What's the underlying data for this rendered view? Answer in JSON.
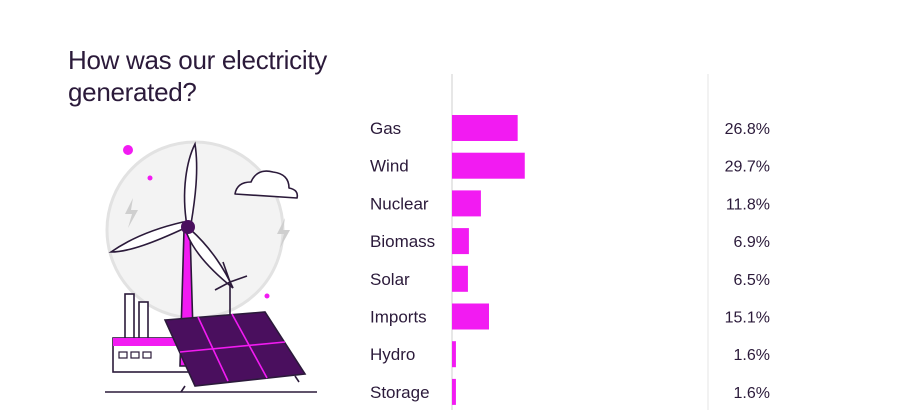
{
  "title": "How was our electricity generated?",
  "colors": {
    "bar": "#f21bf2",
    "ink": "#2b1a3a",
    "purple": "#4a0f5e",
    "axis": "#cfcfcf"
  },
  "chart_data": {
    "type": "bar",
    "orientation": "horizontal",
    "title": "How was our electricity generated?",
    "categories": [
      "Gas",
      "Wind",
      "Nuclear",
      "Biomass",
      "Solar",
      "Imports",
      "Hydro",
      "Storage"
    ],
    "values": [
      26.8,
      29.7,
      11.8,
      6.9,
      6.5,
      15.1,
      1.6,
      1.6
    ],
    "value_labels": [
      "26.8%",
      "29.7%",
      "11.8%",
      "6.9%",
      "6.5%",
      "15.1%",
      "1.6%",
      "1.6%"
    ],
    "unit": "%",
    "xlim": [
      0,
      100
    ],
    "grid": false,
    "legend": "none"
  }
}
